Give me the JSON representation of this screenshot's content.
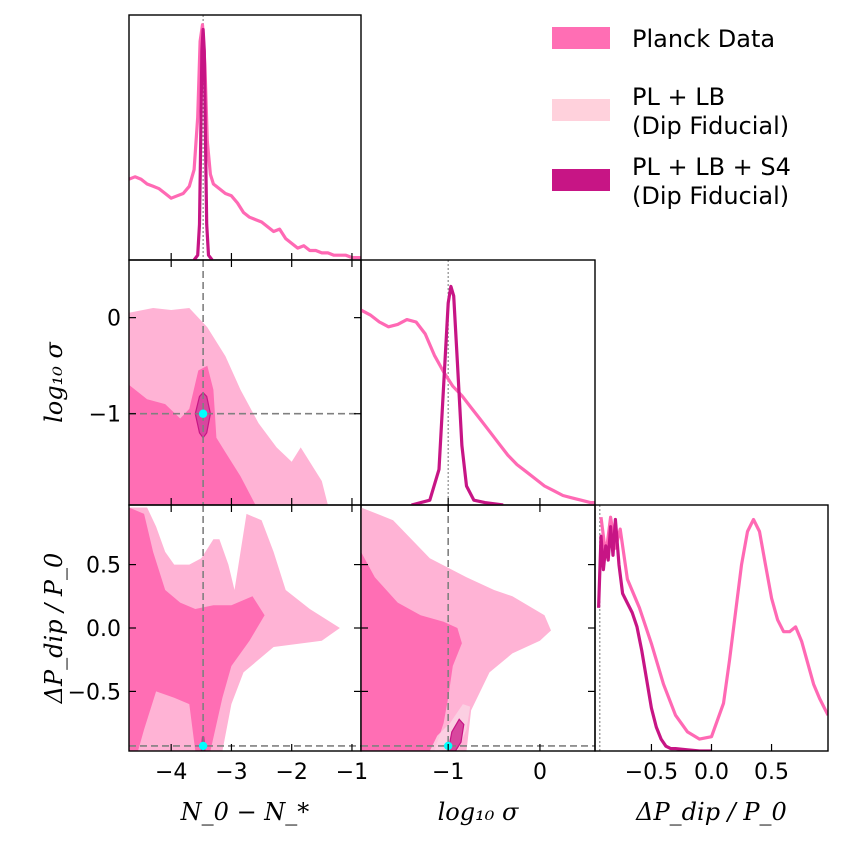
{
  "chart_data": {
    "type": "corner",
    "legend": {
      "placement": "top-right",
      "entries": [
        {
          "lines": [
            "Planck Data"
          ],
          "color": "#ff6eb4"
        },
        {
          "lines": [
            "PL + LB",
            "(Dip Fiducial)"
          ],
          "color": "#ffd1dc"
        },
        {
          "lines": [
            "PL + LB + S4",
            "(Dip Fiducial)"
          ],
          "color": "#c71585"
        }
      ]
    },
    "colors": {
      "planck_outer": "#ffb3d5",
      "planck_inner": "#ff6eb4",
      "planck_line": "#ff69b4",
      "plb_outer": "#fad4e4",
      "plb_inner": "#ee82c6",
      "s4_line": "#c71585",
      "s4_fill": "#d8479e",
      "marker": "#00ffff",
      "guide": "#808080"
    },
    "parameters": [
      {
        "name": "N0_minus_Nstar",
        "label": "N_0 − N_*",
        "range": [
          -4.7,
          -0.85
        ],
        "ticks": [
          -4,
          -3,
          -2,
          -1
        ],
        "tick_labels": [
          "−4",
          "−3",
          "−2",
          "−1"
        ],
        "fiducial": -3.47
      },
      {
        "name": "log10_sigma",
        "label": "log₁₀ σ",
        "range": [
          -1.95,
          0.6
        ],
        "ticks": [
          -1,
          0
        ],
        "tick_labels": [
          "−1",
          "0"
        ],
        "fiducial": -1.0
      },
      {
        "name": "dP_dip_over_P0",
        "label": "ΔP_dip / P_0",
        "range": [
          -0.97,
          0.97
        ],
        "ticks": [
          -0.5,
          0.0,
          0.5
        ],
        "tick_labels": [
          "−0.5",
          "0.0",
          "0.5"
        ],
        "fiducial": -0.93
      }
    ],
    "axis_labels": {
      "x": [
        "N_0 − N_*",
        "log₁₀ σ",
        "ΔP_dip / P_0"
      ],
      "y": [
        "log₁₀ σ",
        "ΔP_dip / P_0"
      ]
    },
    "marginals": [
      {
        "param": 0,
        "series": [
          {
            "name": "Planck Data",
            "x": [
              -4.7,
              -4.6,
              -4.5,
              -4.4,
              -4.3,
              -4.2,
              -4.1,
              -4.0,
              -3.9,
              -3.8,
              -3.7,
              -3.62,
              -3.56,
              -3.52,
              -3.48,
              -3.44,
              -3.4,
              -3.35,
              -3.3,
              -3.2,
              -3.1,
              -3.0,
              -2.9,
              -2.8,
              -2.7,
              -2.6,
              -2.5,
              -2.4,
              -2.3,
              -2.2,
              -2.1,
              -2.0,
              -1.9,
              -1.8,
              -1.7,
              -1.6,
              -1.5,
              -1.4,
              -1.3,
              -1.2,
              -1.1,
              -1.0,
              -0.9,
              -0.85
            ],
            "y": [
              0.34,
              0.35,
              0.34,
              0.32,
              0.31,
              0.3,
              0.28,
              0.26,
              0.27,
              0.28,
              0.31,
              0.38,
              0.6,
              0.92,
              0.99,
              0.82,
              0.5,
              0.36,
              0.32,
              0.3,
              0.28,
              0.27,
              0.24,
              0.2,
              0.18,
              0.17,
              0.16,
              0.14,
              0.12,
              0.13,
              0.09,
              0.07,
              0.05,
              0.06,
              0.04,
              0.04,
              0.03,
              0.03,
              0.02,
              0.02,
              0.02,
              0.01,
              0.01,
              0.01
            ]
          },
          {
            "name": "PL + LB + S4",
            "x": [
              -3.62,
              -3.56,
              -3.53,
              -3.51,
              -3.49,
              -3.47,
              -3.45,
              -3.43,
              -3.41,
              -3.38,
              -3.32
            ],
            "y": [
              0,
              0.02,
              0.15,
              0.5,
              0.88,
              0.97,
              0.88,
              0.5,
              0.15,
              0.02,
              0
            ]
          }
        ]
      },
      {
        "param": 1,
        "series": [
          {
            "name": "Planck Data",
            "x": [
              -1.95,
              -1.85,
              -1.75,
              -1.65,
              -1.55,
              -1.45,
              -1.35,
              -1.25,
              -1.15,
              -1.05,
              -0.95,
              -0.85,
              -0.75,
              -0.65,
              -0.55,
              -0.45,
              -0.35,
              -0.25,
              -0.15,
              -0.05,
              0.05,
              0.15,
              0.25,
              0.35,
              0.45,
              0.55,
              0.6
            ],
            "y": [
              0.82,
              0.8,
              0.77,
              0.75,
              0.76,
              0.78,
              0.77,
              0.72,
              0.63,
              0.56,
              0.5,
              0.46,
              0.41,
              0.36,
              0.31,
              0.26,
              0.21,
              0.17,
              0.14,
              0.11,
              0.08,
              0.06,
              0.04,
              0.03,
              0.02,
              0.01,
              0.01
            ]
          },
          {
            "name": "PL + LB + S4",
            "x": [
              -1.4,
              -1.2,
              -1.1,
              -1.05,
              -1.0,
              -0.97,
              -0.94,
              -0.9,
              -0.85,
              -0.8,
              -0.72,
              -0.6,
              -0.4
            ],
            "y": [
              0,
              0.02,
              0.15,
              0.5,
              0.85,
              0.92,
              0.88,
              0.6,
              0.25,
              0.08,
              0.02,
              0.01,
              0
            ]
          }
        ]
      },
      {
        "param": 2,
        "series": [
          {
            "name": "Planck Data",
            "x": [
              -0.92,
              -0.88,
              -0.84,
              -0.8,
              -0.76,
              -0.7,
              -0.6,
              -0.5,
              -0.4,
              -0.3,
              -0.2,
              -0.1,
              0.0,
              0.1,
              0.15,
              0.2,
              0.25,
              0.3,
              0.35,
              0.4,
              0.45,
              0.5,
              0.55,
              0.6,
              0.65,
              0.7,
              0.75,
              0.8,
              0.85,
              0.9,
              0.97
            ],
            "y": [
              0.98,
              0.82,
              0.98,
              0.85,
              0.93,
              0.72,
              0.6,
              0.45,
              0.28,
              0.15,
              0.08,
              0.05,
              0.06,
              0.2,
              0.38,
              0.58,
              0.78,
              0.92,
              0.97,
              0.92,
              0.78,
              0.64,
              0.55,
              0.5,
              0.5,
              0.52,
              0.46,
              0.37,
              0.28,
              0.22,
              0.15
            ]
          },
          {
            "name": "PL + LB + S4",
            "x": [
              -0.94,
              -0.92,
              -0.9,
              -0.88,
              -0.86,
              -0.84,
              -0.82,
              -0.8,
              -0.77,
              -0.74,
              -0.7,
              -0.66,
              -0.62,
              -0.58,
              -0.54,
              -0.5,
              -0.46,
              -0.42,
              -0.38,
              -0.34,
              -0.3,
              -0.2,
              -0.1,
              0.0
            ],
            "y": [
              0.6,
              0.9,
              0.76,
              0.86,
              0.8,
              0.94,
              0.82,
              0.97,
              0.78,
              0.66,
              0.62,
              0.58,
              0.52,
              0.42,
              0.3,
              0.18,
              0.1,
              0.05,
              0.02,
              0.01,
              0.01,
              0.005,
              0,
              0
            ]
          }
        ]
      }
    ],
    "contours_2d": [
      {
        "x_param": 0,
        "y_param": 1,
        "regions": [
          {
            "name": "Planck Data 95%",
            "level": "outer",
            "polygon": [
              [
                -4.7,
                0.05
              ],
              [
                -4.3,
                0.1
              ],
              [
                -4.0,
                0.08
              ],
              [
                -3.7,
                0.1
              ],
              [
                -3.4,
                -0.1
              ],
              [
                -3.1,
                -0.4
              ],
              [
                -2.85,
                -0.75
              ],
              [
                -2.55,
                -1.1
              ],
              [
                -2.25,
                -1.35
              ],
              [
                -2.0,
                -1.5
              ],
              [
                -1.85,
                -1.35
              ],
              [
                -1.5,
                -1.7
              ],
              [
                -1.4,
                -1.95
              ],
              [
                -4.7,
                -1.95
              ]
            ]
          },
          {
            "name": "Planck Data 68%",
            "level": "inner",
            "polygon": [
              [
                -4.7,
                -0.7
              ],
              [
                -4.4,
                -0.85
              ],
              [
                -4.1,
                -0.9
              ],
              [
                -3.85,
                -1.05
              ],
              [
                -3.7,
                -0.95
              ],
              [
                -3.55,
                -0.55
              ],
              [
                -3.4,
                -0.5
              ],
              [
                -3.3,
                -0.75
              ],
              [
                -3.25,
                -1.25
              ],
              [
                -3.1,
                -1.4
              ],
              [
                -2.85,
                -1.65
              ],
              [
                -2.6,
                -1.95
              ],
              [
                -4.7,
                -1.95
              ]
            ]
          },
          {
            "name": "PL + LB + S4",
            "level": "s4",
            "polygon": [
              [
                -3.6,
                -1.0
              ],
              [
                -3.53,
                -0.82
              ],
              [
                -3.47,
                -0.78
              ],
              [
                -3.41,
                -0.82
              ],
              [
                -3.35,
                -1.0
              ],
              [
                -3.41,
                -1.2
              ],
              [
                -3.47,
                -1.25
              ],
              [
                -3.53,
                -1.2
              ]
            ]
          }
        ]
      },
      {
        "x_param": 0,
        "y_param": 2,
        "regions": [
          {
            "name": "Planck Data 95%",
            "level": "outer",
            "polygon": [
              [
                -4.7,
                0.95
              ],
              [
                -4.4,
                0.95
              ],
              [
                -4.25,
                0.8
              ],
              [
                -4.1,
                0.6
              ],
              [
                -3.95,
                0.5
              ],
              [
                -3.7,
                0.5
              ],
              [
                -3.5,
                0.55
              ],
              [
                -3.3,
                0.7
              ],
              [
                -3.2,
                0.7
              ],
              [
                -3.05,
                0.5
              ],
              [
                -2.95,
                0.3
              ],
              [
                -2.75,
                0.9
              ],
              [
                -2.5,
                0.85
              ],
              [
                -2.3,
                0.6
              ],
              [
                -2.1,
                0.3
              ],
              [
                -1.7,
                0.15
              ],
              [
                -1.2,
                0.0
              ],
              [
                -1.5,
                -0.1
              ],
              [
                -2.3,
                -0.15
              ],
              [
                -2.8,
                -0.35
              ],
              [
                -3.0,
                -0.6
              ],
              [
                -3.15,
                -0.97
              ],
              [
                -4.7,
                -0.97
              ]
            ]
          },
          {
            "name": "Planck Data 68%",
            "level": "inner",
            "polygon": [
              [
                -4.7,
                0.95
              ],
              [
                -4.45,
                0.9
              ],
              [
                -4.3,
                0.6
              ],
              [
                -4.1,
                0.3
              ],
              [
                -3.85,
                0.2
              ],
              [
                -3.6,
                0.15
              ],
              [
                -3.3,
                0.18
              ],
              [
                -3.0,
                0.18
              ],
              [
                -2.65,
                0.25
              ],
              [
                -2.45,
                0.1
              ],
              [
                -2.7,
                -0.1
              ],
              [
                -3.0,
                -0.3
              ],
              [
                -3.15,
                -0.55
              ],
              [
                -3.35,
                -0.97
              ],
              [
                -3.6,
                -0.97
              ],
              [
                -3.7,
                -0.6
              ],
              [
                -3.95,
                -0.55
              ],
              [
                -4.25,
                -0.5
              ],
              [
                -4.45,
                -0.8
              ],
              [
                -4.55,
                -0.97
              ],
              [
                -4.7,
                -0.97
              ]
            ]
          },
          {
            "name": "PL + LB + S4",
            "level": "s4",
            "polygon": [
              [
                -3.5,
                -0.97
              ],
              [
                -3.48,
                -0.86
              ],
              [
                -3.46,
                -0.86
              ],
              [
                -3.44,
                -0.97
              ]
            ]
          }
        ]
      },
      {
        "x_param": 1,
        "y_param": 2,
        "regions": [
          {
            "name": "Planck Data 95%",
            "level": "outer",
            "polygon": [
              [
                -1.95,
                0.95
              ],
              [
                -1.6,
                0.85
              ],
              [
                -1.2,
                0.55
              ],
              [
                -0.8,
                0.4
              ],
              [
                -0.5,
                0.3
              ],
              [
                -0.3,
                0.25
              ],
              [
                0.05,
                0.1
              ],
              [
                0.12,
                -0.02
              ],
              [
                0.0,
                -0.1
              ],
              [
                -0.3,
                -0.2
              ],
              [
                -0.55,
                -0.35
              ],
              [
                -0.75,
                -0.65
              ],
              [
                -0.8,
                -0.97
              ],
              [
                -1.95,
                -0.97
              ]
            ]
          },
          {
            "name": "Planck Data 68%",
            "level": "inner",
            "polygon": [
              [
                -1.95,
                0.6
              ],
              [
                -1.8,
                0.4
              ],
              [
                -1.55,
                0.2
              ],
              [
                -1.3,
                0.1
              ],
              [
                -1.05,
                0.05
              ],
              [
                -0.9,
                0.0
              ],
              [
                -0.85,
                -0.12
              ],
              [
                -0.95,
                -0.3
              ],
              [
                -1.0,
                -0.55
              ],
              [
                -1.05,
                -0.75
              ],
              [
                -1.15,
                -0.97
              ],
              [
                -1.95,
                -0.97
              ]
            ]
          },
          {
            "name": "PL + LB (Dip Fiducial)",
            "level": "plb",
            "polygon": [
              [
                -1.2,
                -0.97
              ],
              [
                -1.12,
                -0.85
              ],
              [
                -0.98,
                -0.75
              ],
              [
                -0.84,
                -0.6
              ],
              [
                -0.76,
                -0.62
              ],
              [
                -0.8,
                -0.8
              ],
              [
                -0.9,
                -0.97
              ]
            ]
          },
          {
            "name": "PL + LB + S4",
            "level": "s4",
            "polygon": [
              [
                -1.0,
                -0.97
              ],
              [
                -0.96,
                -0.82
              ],
              [
                -0.88,
                -0.72
              ],
              [
                -0.83,
                -0.76
              ],
              [
                -0.86,
                -0.9
              ],
              [
                -0.92,
                -0.97
              ]
            ]
          }
        ]
      }
    ]
  }
}
